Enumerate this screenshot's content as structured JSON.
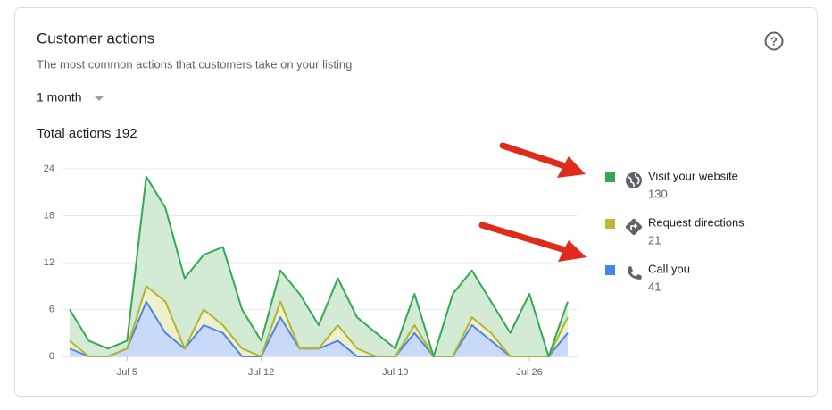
{
  "header": {
    "title": "Customer actions",
    "subtitle": "The most common actions that customers take on your listing",
    "range": "1 month"
  },
  "chart_data": {
    "type": "stacked_area",
    "total_label": "Total actions",
    "total": 192,
    "categories": [
      null,
      null,
      null,
      "Jul 5",
      null,
      null,
      null,
      null,
      null,
      null,
      "Jul 12",
      null,
      null,
      null,
      null,
      null,
      null,
      "Jul 19",
      null,
      null,
      null,
      null,
      null,
      null,
      "Jul 26",
      null,
      null
    ],
    "series": [
      {
        "name": "Call you",
        "total": 41,
        "color": "#4a86e8",
        "fill": "#c9daf8",
        "legend_color": "#4285f4",
        "values": [
          1,
          0,
          0,
          1,
          7,
          3,
          1,
          4,
          3,
          0,
          0,
          5,
          1,
          1,
          2,
          0,
          0,
          0,
          3,
          0,
          0,
          4,
          2,
          0,
          0,
          0,
          3
        ]
      },
      {
        "name": "Request directions",
        "total": 21,
        "color": "#b3b32d",
        "fill": "#eef0cc",
        "legend_color": "#b9b934",
        "values": [
          1,
          0,
          0,
          0,
          2,
          4,
          0,
          2,
          1,
          1,
          0,
          2,
          0,
          0,
          2,
          1,
          0,
          0,
          1,
          0,
          0,
          1,
          1,
          0,
          0,
          0,
          2
        ]
      },
      {
        "name": "Visit your website",
        "total": 130,
        "color": "#34a853",
        "fill": "#d3ebd5",
        "legend_color": "#34a853",
        "values": [
          4,
          2,
          1,
          1,
          14,
          12,
          9,
          7,
          10,
          5,
          2,
          4,
          7,
          3,
          6,
          4,
          3,
          1,
          4,
          0,
          8,
          6,
          4,
          3,
          8,
          0,
          2
        ]
      }
    ],
    "ylim": [
      0,
      24
    ],
    "yticks": [
      0,
      6,
      12,
      18,
      24
    ],
    "grid": true
  }
}
